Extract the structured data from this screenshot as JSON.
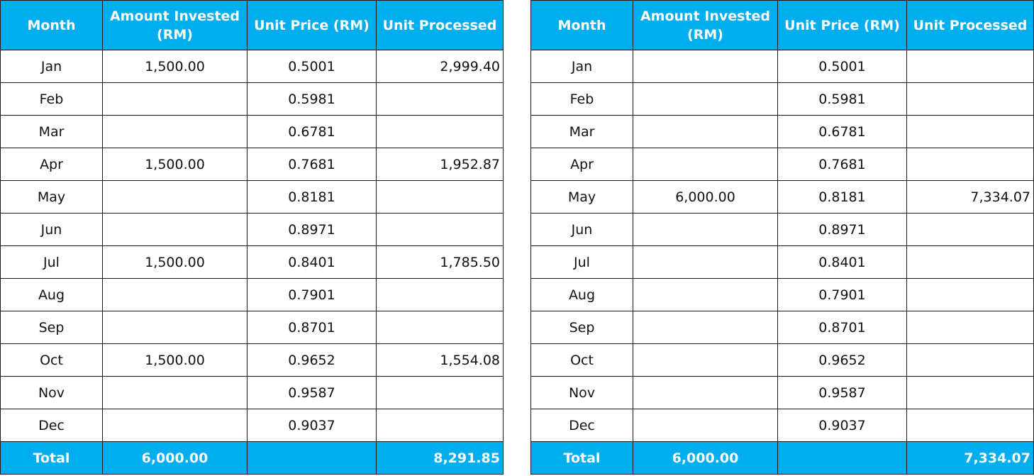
{
  "headers": {
    "month": "Month",
    "amount_line1": "Amount Invested",
    "amount_line2": "(RM)",
    "unit_price": "Unit Price (RM)",
    "unit_processed": "Unit Processed"
  },
  "left_table": {
    "rows": [
      {
        "month": "Jan",
        "amount": "1,500.00",
        "price": "0.5001",
        "units": "2,999.40"
      },
      {
        "month": "Feb",
        "amount": "",
        "price": "0.5981",
        "units": ""
      },
      {
        "month": "Mar",
        "amount": "",
        "price": "0.6781",
        "units": ""
      },
      {
        "month": "Apr",
        "amount": "1,500.00",
        "price": "0.7681",
        "units": "1,952.87"
      },
      {
        "month": "May",
        "amount": "",
        "price": "0.8181",
        "units": ""
      },
      {
        "month": "Jun",
        "amount": "",
        "price": "0.8971",
        "units": ""
      },
      {
        "month": "Jul",
        "amount": "1,500.00",
        "price": "0.8401",
        "units": "1,785.50"
      },
      {
        "month": "Aug",
        "amount": "",
        "price": "0.7901",
        "units": ""
      },
      {
        "month": "Sep",
        "amount": "",
        "price": "0.8701",
        "units": ""
      },
      {
        "month": "Oct",
        "amount": "1,500.00",
        "price": "0.9652",
        "units": "1,554.08"
      },
      {
        "month": "Nov",
        "amount": "",
        "price": "0.9587",
        "units": ""
      },
      {
        "month": "Dec",
        "amount": "",
        "price": "0.9037",
        "units": ""
      }
    ],
    "total": {
      "label": "Total",
      "amount": "6,000.00",
      "price": "",
      "units": "8,291.85"
    }
  },
  "right_table": {
    "rows": [
      {
        "month": "Jan",
        "amount": "",
        "price": "0.5001",
        "units": ""
      },
      {
        "month": "Feb",
        "amount": "",
        "price": "0.5981",
        "units": ""
      },
      {
        "month": "Mar",
        "amount": "",
        "price": "0.6781",
        "units": ""
      },
      {
        "month": "Apr",
        "amount": "",
        "price": "0.7681",
        "units": ""
      },
      {
        "month": "May",
        "amount": "6,000.00",
        "price": "0.8181",
        "units": "7,334.07"
      },
      {
        "month": "Jun",
        "amount": "",
        "price": "0.8971",
        "units": ""
      },
      {
        "month": "Jul",
        "amount": "",
        "price": "0.8401",
        "units": ""
      },
      {
        "month": "Aug",
        "amount": "",
        "price": "0.7901",
        "units": ""
      },
      {
        "month": "Sep",
        "amount": "",
        "price": "0.8701",
        "units": ""
      },
      {
        "month": "Oct",
        "amount": "",
        "price": "0.9652",
        "units": ""
      },
      {
        "month": "Nov",
        "amount": "",
        "price": "0.9587",
        "units": ""
      },
      {
        "month": "Dec",
        "amount": "",
        "price": "0.9037",
        "units": ""
      }
    ],
    "total": {
      "label": "Total",
      "amount": "6,000.00",
      "price": "",
      "units": "7,334.07"
    }
  },
  "colors": {
    "header_bg": "#00aeef",
    "header_text": "#ffffff",
    "border": "#1a1a1a"
  }
}
